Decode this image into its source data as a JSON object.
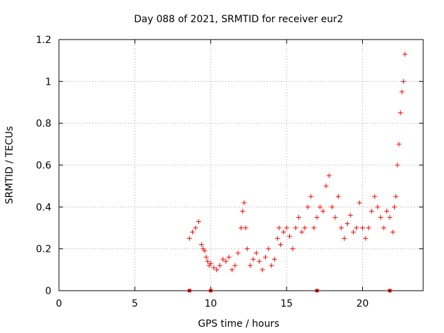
{
  "chart_data": {
    "type": "scatter",
    "title": "Day 088 of 2021, SRMTID for receiver eur2",
    "xlabel": "GPS time / hours",
    "ylabel": "SRMTID / TECUs",
    "xlim": [
      0,
      24
    ],
    "ylim": [
      0,
      1.2
    ],
    "x_ticks": [
      0,
      5,
      10,
      15,
      20
    ],
    "x_tick_labels": [
      "0",
      "5",
      "10",
      "15",
      "20"
    ],
    "y_ticks": [
      0,
      0.2,
      0.4,
      0.6,
      0.8,
      1.0,
      1.2
    ],
    "y_tick_labels": [
      "0",
      "0.2",
      "0.4",
      "0.6",
      "0.8",
      "1",
      "1.2"
    ],
    "grid": true,
    "marker": "+",
    "series": [
      {
        "name": "SRMTID",
        "color": "#ff0000",
        "x": [
          8.6,
          8.8,
          9.0,
          9.2,
          9.4,
          9.5,
          9.6,
          9.7,
          9.8,
          9.9,
          10.0,
          10.2,
          10.4,
          10.6,
          10.8,
          11.0,
          11.2,
          11.4,
          11.6,
          11.8,
          12.0,
          12.1,
          12.2,
          12.3,
          12.4,
          12.6,
          12.8,
          13.0,
          13.2,
          13.4,
          13.6,
          13.8,
          14.0,
          14.2,
          14.4,
          14.5,
          14.6,
          14.8,
          15.0,
          15.2,
          15.4,
          15.6,
          15.8,
          16.0,
          16.2,
          16.4,
          16.6,
          16.8,
          17.0,
          17.2,
          17.4,
          17.6,
          17.8,
          18.0,
          18.2,
          18.4,
          18.6,
          18.8,
          19.0,
          19.2,
          19.4,
          19.6,
          19.8,
          20.0,
          20.2,
          20.4,
          20.6,
          20.8,
          21.0,
          21.2,
          21.4,
          21.6,
          21.8,
          22.0,
          22.1,
          22.2,
          22.3,
          22.4,
          22.5,
          22.6,
          22.7,
          22.8
        ],
        "y": [
          0.25,
          0.28,
          0.3,
          0.33,
          0.22,
          0.2,
          0.19,
          0.16,
          0.14,
          0.12,
          0.13,
          0.11,
          0.1,
          0.12,
          0.15,
          0.14,
          0.16,
          0.1,
          0.12,
          0.18,
          0.3,
          0.38,
          0.42,
          0.3,
          0.2,
          0.12,
          0.15,
          0.18,
          0.14,
          0.1,
          0.16,
          0.2,
          0.12,
          0.15,
          0.25,
          0.3,
          0.22,
          0.28,
          0.3,
          0.26,
          0.2,
          0.3,
          0.35,
          0.28,
          0.3,
          0.4,
          0.45,
          0.3,
          0.35,
          0.4,
          0.38,
          0.5,
          0.55,
          0.4,
          0.35,
          0.45,
          0.3,
          0.25,
          0.32,
          0.36,
          0.28,
          0.3,
          0.42,
          0.3,
          0.25,
          0.3,
          0.38,
          0.45,
          0.4,
          0.35,
          0.3,
          0.38,
          0.35,
          0.28,
          0.4,
          0.45,
          0.6,
          0.7,
          0.85,
          0.95,
          1.0,
          1.13
        ]
      },
      {
        "name": "markers",
        "color": "#ff0000",
        "x": [
          8.6,
          10.0,
          17.0,
          21.8
        ],
        "y": [
          0,
          0,
          0,
          0
        ]
      }
    ]
  }
}
